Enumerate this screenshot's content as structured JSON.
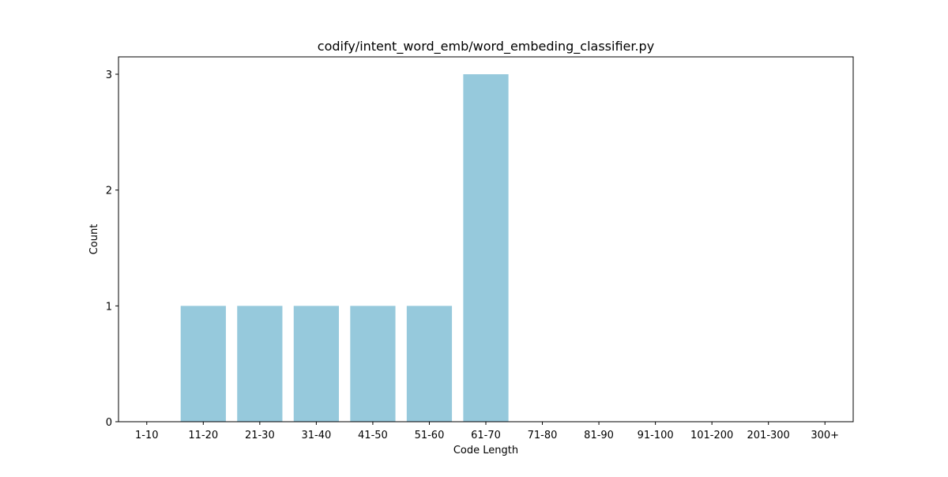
{
  "chart_data": {
    "type": "bar",
    "title": "codify/intent_word_emb/word_embeding_classifier.py",
    "xlabel": "Code Length",
    "ylabel": "Count",
    "categories": [
      "1-10",
      "11-20",
      "21-30",
      "31-40",
      "41-50",
      "51-60",
      "61-70",
      "71-80",
      "81-90",
      "91-100",
      "101-200",
      "201-300",
      "300+"
    ],
    "values": [
      0,
      1,
      1,
      1,
      1,
      1,
      3,
      0,
      0,
      0,
      0,
      0,
      0
    ],
    "yticks": [
      "0",
      "1",
      "2",
      "3"
    ],
    "ylim": [
      0,
      3.15
    ],
    "grid": false,
    "legend": "none",
    "bar_color": "#96c9dc",
    "axis_color": "#000000"
  }
}
